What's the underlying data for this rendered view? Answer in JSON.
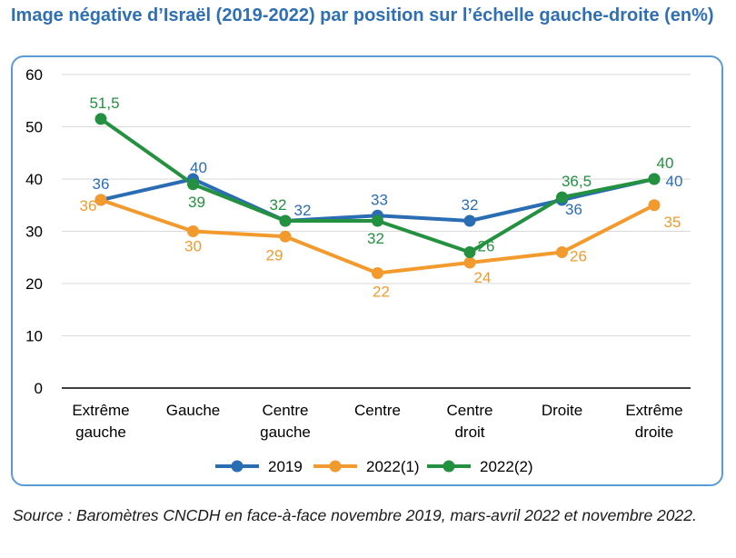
{
  "title": "Image négative d’Israël (2019-2022) par position sur l’échelle gauche-droite (en%)",
  "source": "Source : Baromètres CNCDH en face-à-face novembre 2019, mars-avril 2022 et novembre 2022.",
  "chart_data": {
    "type": "line",
    "title": "Image négative d’Israël (2019-2022) par position sur l’échelle gauche-droite (en%)",
    "categories": [
      [
        "Extrême",
        "gauche"
      ],
      [
        "Gauche"
      ],
      [
        "Centre",
        "gauche"
      ],
      [
        "Centre"
      ],
      [
        "Centre",
        "droit"
      ],
      [
        "Droite"
      ],
      [
        "Extrême",
        "droite"
      ]
    ],
    "ylim": [
      0,
      60
    ],
    "yticks": [
      0,
      10,
      20,
      30,
      40,
      50,
      60
    ],
    "grid": true,
    "legend_position": "bottom",
    "series": [
      {
        "name": "2019",
        "color": "#2a6db3",
        "values": [
          36,
          40,
          32,
          33,
          32,
          36,
          40
        ],
        "labels": [
          "36",
          "40",
          "32",
          "33",
          "32",
          "36",
          "40"
        ]
      },
      {
        "name": "2022(1)",
        "color": "#f39a2e",
        "values": [
          36,
          30,
          29,
          22,
          24,
          26,
          35
        ],
        "labels": [
          "36",
          "30",
          "29",
          "22",
          "24",
          "26",
          "35"
        ]
      },
      {
        "name": "2022(2)",
        "color": "#23913f",
        "values": [
          51.5,
          39,
          32,
          32,
          26,
          36.5,
          40
        ],
        "labels": [
          "51,5",
          "39",
          "32",
          "32",
          "26",
          "36,5",
          "40"
        ]
      }
    ]
  }
}
